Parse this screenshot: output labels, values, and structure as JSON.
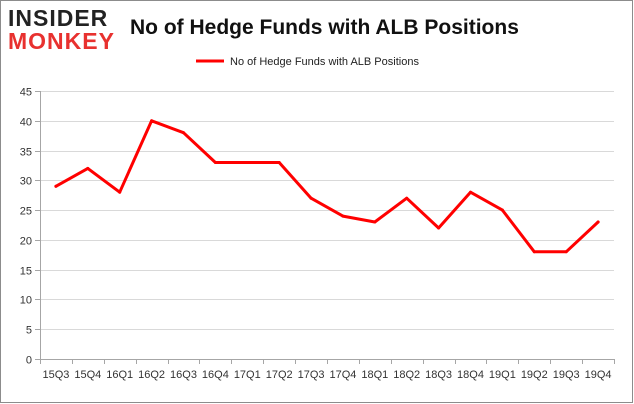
{
  "logo": {
    "line1": "INSIDER",
    "line2": "MONKEY"
  },
  "chart_data": {
    "type": "line",
    "title": "No of Hedge Funds with ALB Positions",
    "xlabel": "",
    "ylabel": "",
    "categories": [
      "15Q3",
      "15Q4",
      "16Q1",
      "16Q2",
      "16Q3",
      "16Q4",
      "17Q1",
      "17Q2",
      "17Q3",
      "17Q4",
      "18Q1",
      "18Q2",
      "18Q3",
      "18Q4",
      "19Q1",
      "19Q2",
      "19Q3",
      "19Q4"
    ],
    "series": [
      {
        "name": "No of Hedge Funds with ALB Positions",
        "values": [
          29,
          32,
          28,
          40,
          38,
          33,
          33,
          33,
          27,
          24,
          23,
          27,
          22,
          28,
          25,
          18,
          18,
          23
        ]
      }
    ],
    "ylim": [
      0,
      45
    ],
    "yticks": [
      0,
      5,
      10,
      15,
      20,
      25,
      30,
      35,
      40,
      45
    ],
    "grid": true,
    "legend_position": "top",
    "colors": {
      "line": "#ff0000",
      "grid": "#d9d9d9",
      "axis": "#a6a6a6",
      "border": "#888888"
    }
  }
}
